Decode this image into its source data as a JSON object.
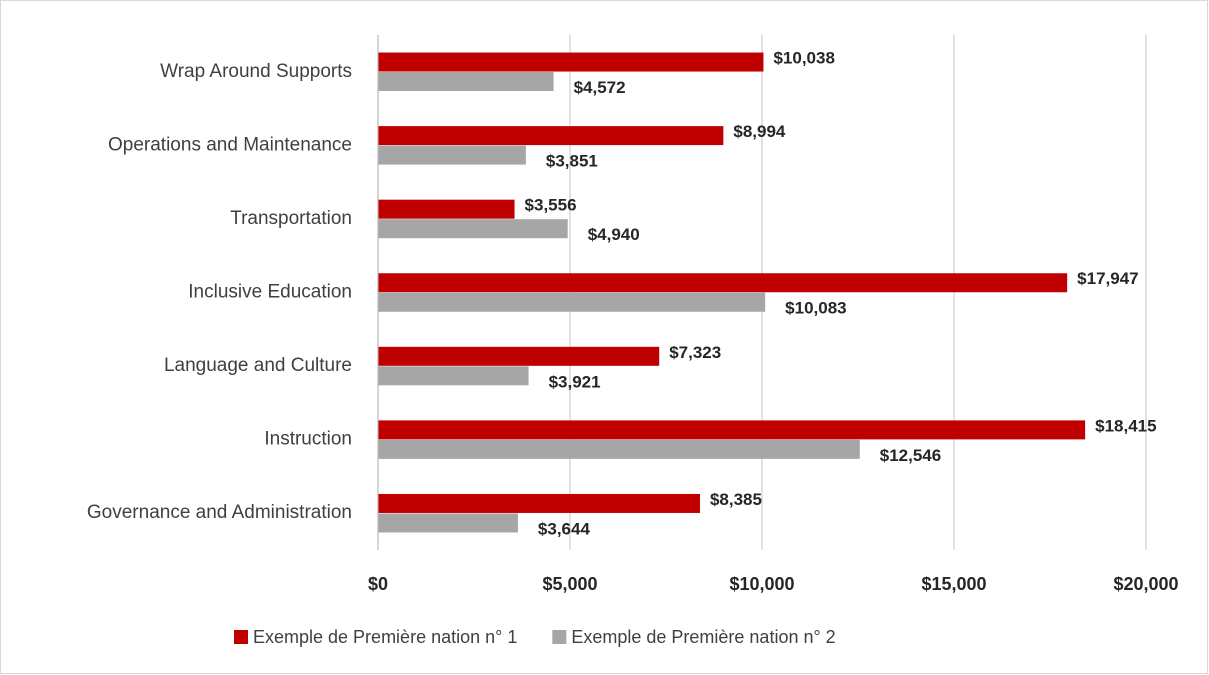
{
  "chart_data": {
    "type": "hbar",
    "categories": [
      "Wrap Around Supports",
      "Operations and Maintenance",
      "Transportation",
      "Inclusive Education",
      "Language and Culture",
      "Instruction",
      "Governance and Administration"
    ],
    "series": [
      {
        "name": "Exemple de Première nation n° 1",
        "color": "#c00000",
        "values": [
          10038,
          8994,
          3556,
          17947,
          7323,
          18415,
          8385
        ],
        "value_labels": [
          "$10,038",
          "$8,994",
          "$3,556",
          "$17,947",
          "$7,323",
          "$18,415",
          "$8,385"
        ]
      },
      {
        "name": "Exemple de Première nation n° 2",
        "color": "#a6a6a6",
        "values": [
          4572,
          3851,
          4940,
          10083,
          3921,
          12546,
          3644
        ],
        "value_labels": [
          "$4,572",
          "$3,851",
          "$4,940",
          "$10,083",
          "$3,921",
          "$12,546",
          "$3,644"
        ]
      }
    ],
    "xlim": [
      0,
      20000
    ],
    "xticks": [
      {
        "value": 0,
        "label": "$0"
      },
      {
        "value": 5000,
        "label": "$5,000"
      },
      {
        "value": 10000,
        "label": "$10,000"
      },
      {
        "value": 15000,
        "label": "$15,000"
      },
      {
        "value": 20000,
        "label": "$20,000"
      }
    ],
    "grid": true,
    "legend": "bottom"
  }
}
